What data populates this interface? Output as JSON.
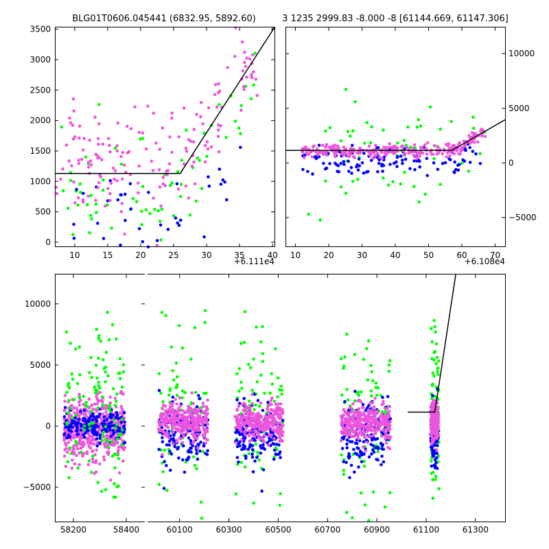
{
  "colors": {
    "series_green": "#00ff00",
    "series_blue": "#0000ff",
    "series_pink": "#ee55dd",
    "fit_line": "#000000"
  },
  "chart_data": [
    {
      "id": "top-left",
      "type": "scatter",
      "title": "BLG01T0606.045441 (6832.95, 5892.60)",
      "x_offset_label": "+6.111e4",
      "xlim": [
        7,
        40.3
      ],
      "ylim": [
        -80,
        3530
      ],
      "x_ticks": [
        10,
        15,
        20,
        25,
        30,
        35,
        40
      ],
      "y_ticks": [
        0,
        500,
        1000,
        1500,
        2000,
        2500,
        3000,
        3500
      ],
      "y_axis_side": "left",
      "fit_line": [
        [
          7,
          1130
        ],
        [
          26,
          1130
        ],
        [
          40.3,
          3530
        ]
      ],
      "series": [
        {
          "name": "green",
          "color": "#00ff00",
          "count": 70,
          "seed": 11,
          "x_range": [
            8,
            37.5
          ],
          "base": 900,
          "spread": 500,
          "rise_from": 26,
          "rise_slope": 150
        },
        {
          "name": "blue",
          "color": "#0000ff",
          "count": 40,
          "seed": 21,
          "x_range": [
            7,
            36.5
          ],
          "base": 350,
          "spread": 350,
          "rise_from": 28,
          "rise_slope": 150
        },
        {
          "name": "pink",
          "color": "#ee55dd",
          "count": 170,
          "seed": 31,
          "x_range": [
            7,
            38
          ],
          "base": 1250,
          "spread": 450,
          "rise_from": 26,
          "rise_slope": 170
        }
      ]
    },
    {
      "id": "top-right",
      "type": "scatter",
      "title": "3 1235 2999.83 -8.000 -8 [61144.669, 61147.306]",
      "x_offset_label": "+6.108e4",
      "xlim": [
        7,
        73
      ],
      "ylim": [
        -7700,
        12400
      ],
      "x_ticks": [
        10,
        20,
        30,
        40,
        50,
        60,
        70
      ],
      "y_ticks": [
        -5000,
        0,
        5000,
        10000
      ],
      "y_axis_side": "right",
      "fit_line": [
        [
          7,
          1150
        ],
        [
          57,
          1150
        ],
        [
          73,
          3950
        ]
      ],
      "series": [
        {
          "name": "green",
          "color": "#00ff00",
          "count": 55,
          "seed": 41,
          "x_range": [
            12,
            67
          ],
          "base": 900,
          "spread": 2400,
          "rise_from": 57,
          "rise_slope": 150
        },
        {
          "name": "blue",
          "color": "#0000ff",
          "count": 120,
          "seed": 51,
          "x_range": [
            12,
            66
          ],
          "base": 100,
          "spread": 700,
          "rise_from": 57,
          "rise_slope": 150
        },
        {
          "name": "pink",
          "color": "#ee55dd",
          "count": 260,
          "seed": 61,
          "x_range": [
            12,
            67
          ],
          "base": 1100,
          "spread": 300,
          "rise_from": 57,
          "rise_slope": 180
        }
      ]
    },
    {
      "id": "bottom-left",
      "type": "scatter",
      "title": "",
      "xlim": [
        58130,
        58470
      ],
      "ylim": [
        -7800,
        12400
      ],
      "x_ticks": [
        58200,
        58400
      ],
      "y_ticks": [
        -5000,
        0,
        5000,
        10000
      ],
      "y_axis_side": "left",
      "fit_line": [],
      "series": [
        {
          "name": "pink",
          "color": "#ee55dd",
          "count": 500,
          "seed": 71,
          "x_range": [
            58165,
            58395
          ],
          "base": -300,
          "spread": 1300,
          "rise_from": null,
          "rise_slope": 0
        },
        {
          "name": "blue",
          "color": "#0000ff",
          "count": 180,
          "seed": 81,
          "x_range": [
            58165,
            58395
          ],
          "base": 100,
          "spread": 600,
          "rise_from": null,
          "rise_slope": 0
        },
        {
          "name": "green",
          "color": "#00ff00",
          "count": 120,
          "seed": 91,
          "x_range": [
            58170,
            58390
          ],
          "base": 1000,
          "spread": 3500,
          "rise_from": null,
          "rise_slope": 0
        }
      ]
    },
    {
      "id": "bottom-right",
      "type": "scatter",
      "title": "",
      "xlim": [
        59970,
        61420
      ],
      "ylim": [
        -7800,
        12400
      ],
      "x_ticks": [
        60100,
        60300,
        60500,
        60700,
        60900,
        61100,
        61300
      ],
      "y_ticks": [],
      "y_axis_side": "none",
      "fit_line": [
        [
          61025,
          1150
        ],
        [
          61135,
          1150
        ],
        [
          61220,
          12400
        ]
      ],
      "series": [
        {
          "name": "green",
          "color": "#00ff00",
          "count": 330,
          "seed": 101,
          "x_ranges": [
            [
              60015,
              60215
            ],
            [
              60325,
              60520
            ],
            [
              60755,
              60955
            ],
            [
              61120,
              61152
            ]
          ],
          "base": 1300,
          "spread": 3500,
          "rise_from": null,
          "rise_slope": 0
        },
        {
          "name": "blue",
          "color": "#0000ff",
          "count": 600,
          "seed": 111,
          "x_ranges": [
            [
              60015,
              60215
            ],
            [
              60325,
              60520
            ],
            [
              60755,
              60955
            ],
            [
              61118,
              61150
            ]
          ],
          "base": -700,
          "spread": 1300,
          "rise_from": null,
          "rise_slope": 0
        },
        {
          "name": "pink",
          "color": "#ee55dd",
          "count": 1200,
          "seed": 121,
          "x_ranges": [
            [
              60015,
              60215
            ],
            [
              60325,
              60520
            ],
            [
              60755,
              60955
            ],
            [
              61120,
              61150
            ]
          ],
          "base": 350,
          "spread": 700,
          "rise_from": null,
          "rise_slope": 0
        }
      ]
    }
  ]
}
